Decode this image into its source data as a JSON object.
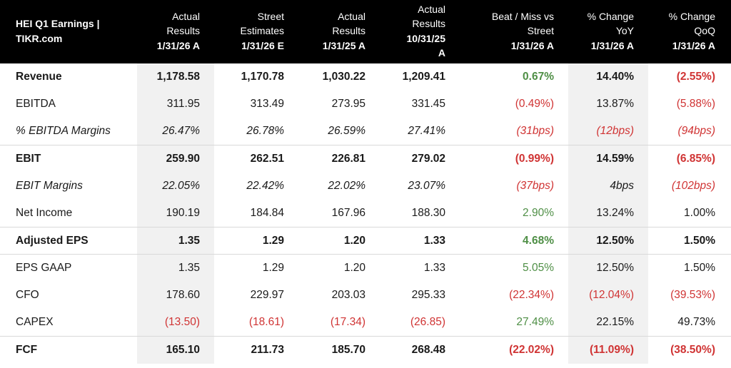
{
  "header": {
    "title_line1": "HEI Q1 Earnings |",
    "title_line2": "TIKR.com",
    "columns": [
      {
        "l1": "Actual",
        "l2": "Results",
        "l3": "1/31/26 A"
      },
      {
        "l1": "Street",
        "l2": "Estimates",
        "l3": "1/31/26 E"
      },
      {
        "l1": "Actual",
        "l2": "Results",
        "l3": "1/31/25 A"
      },
      {
        "l1": "Actual",
        "l2": "Results",
        "l3": "10/31/25",
        "l4": "A"
      },
      {
        "l1": "Beat / Miss vs",
        "l2": "Street",
        "l3": "1/31/26 A"
      },
      {
        "l1": "% Change",
        "l2": "YoY",
        "l3": "1/31/26 A"
      },
      {
        "l1": "% Change",
        "l2": "QoQ",
        "l3": "1/31/26 A"
      }
    ]
  },
  "rows": [
    {
      "label": "Revenue",
      "values": [
        "1,178.58",
        "1,170.78",
        "1,030.22",
        "1,209.41",
        "0.67%",
        "14.40%",
        "(2.55%)"
      ]
    },
    {
      "label": "EBITDA",
      "values": [
        "311.95",
        "313.49",
        "273.95",
        "331.45",
        "(0.49%)",
        "13.87%",
        "(5.88%)"
      ]
    },
    {
      "label": "% EBITDA Margins",
      "values": [
        "26.47%",
        "26.78%",
        "26.59%",
        "27.41%",
        "(31bps)",
        "(12bps)",
        "(94bps)"
      ]
    },
    {
      "label": "EBIT",
      "values": [
        "259.90",
        "262.51",
        "226.81",
        "279.02",
        "(0.99%)",
        "14.59%",
        "(6.85%)"
      ]
    },
    {
      "label": "EBIT Margins",
      "values": [
        "22.05%",
        "22.42%",
        "22.02%",
        "23.07%",
        "(37bps)",
        "4bps",
        "(102bps)"
      ]
    },
    {
      "label": "Net Income",
      "values": [
        "190.19",
        "184.84",
        "167.96",
        "188.30",
        "2.90%",
        "13.24%",
        "1.00%"
      ]
    },
    {
      "label": "Adjusted EPS",
      "values": [
        "1.35",
        "1.29",
        "1.20",
        "1.33",
        "4.68%",
        "12.50%",
        "1.50%"
      ]
    },
    {
      "label": "EPS GAAP",
      "values": [
        "1.35",
        "1.29",
        "1.20",
        "1.33",
        "5.05%",
        "12.50%",
        "1.50%"
      ]
    },
    {
      "label": "CFO",
      "values": [
        "178.60",
        "229.97",
        "203.03",
        "295.33",
        "(22.34%)",
        "(12.04%)",
        "(39.53%)"
      ]
    },
    {
      "label": "CAPEX",
      "values": [
        "(13.50)",
        "(18.61)",
        "(17.34)",
        "(26.85)",
        "27.49%",
        "22.15%",
        "49.73%"
      ]
    },
    {
      "label": "FCF",
      "values": [
        "165.10",
        "211.73",
        "185.70",
        "268.48",
        "(22.02%)",
        "(11.09%)",
        "(38.50%)"
      ]
    }
  ],
  "colors": {
    "positive": "#4f8f46",
    "negative": "#d03434",
    "header_bg": "#000000",
    "shade": "#f1f1f1"
  }
}
